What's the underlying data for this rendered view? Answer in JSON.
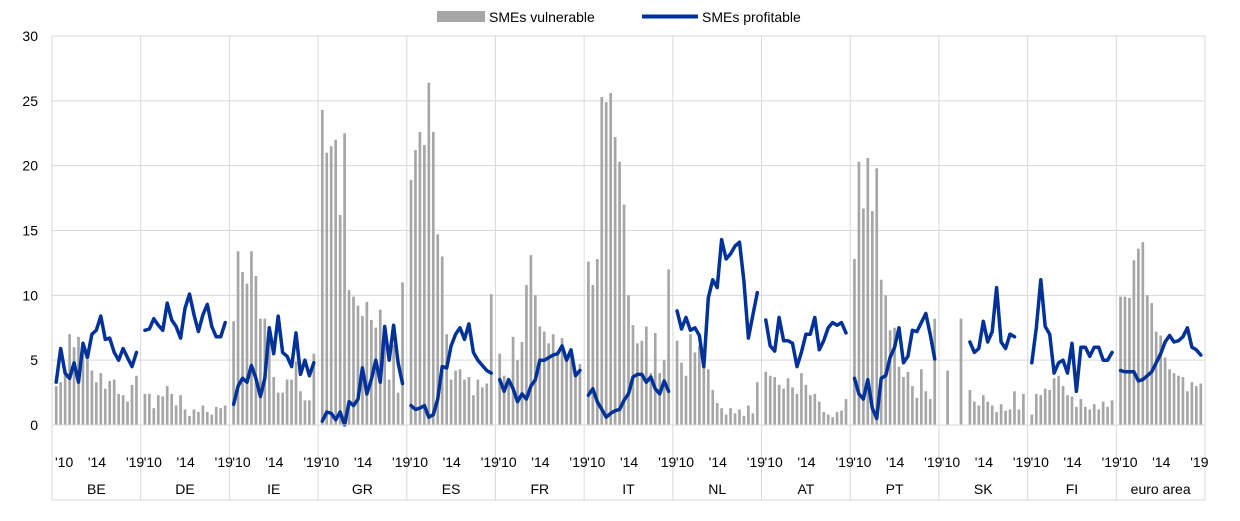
{
  "chart_data": {
    "type": "bar+line",
    "title": "",
    "legend": {
      "placement": "top-center",
      "items": [
        {
          "label": "SMEs vulnerable",
          "color": "#a6a6a6",
          "kind": "bar"
        },
        {
          "label": "SMEs profitable",
          "color": "#003299",
          "kind": "line"
        }
      ]
    },
    "ylim": [
      0,
      30
    ],
    "yticks": [
      "0",
      "5",
      "10",
      "15",
      "20",
      "25",
      "30"
    ],
    "grid": true,
    "year_tick_labels": [
      "'10",
      "'14",
      "'19"
    ],
    "series": [
      {
        "name": "SMEs vulnerable",
        "color": "#a6a6a6"
      },
      {
        "name": "SMEs profitable",
        "color": "#003299"
      }
    ],
    "groups": [
      {
        "name": "BE",
        "vulnerable": [
          3.0,
          3.3,
          4.0,
          7.0,
          6.0,
          6.8,
          6.2,
          5.0,
          4.2,
          3.3,
          4.0,
          2.8,
          3.4,
          3.5,
          2.4,
          2.3,
          1.8,
          3.1,
          3.8
        ],
        "profitable": [
          3.3,
          5.9,
          4.0,
          3.6,
          4.8,
          3.3,
          6.3,
          5.2,
          7.0,
          7.3,
          8.4,
          6.6,
          6.7,
          5.6,
          5.0,
          5.9,
          5.2,
          4.5,
          5.6
        ]
      },
      {
        "name": "DE",
        "vulnerable": [
          2.4,
          2.4,
          1.3,
          2.3,
          2.2,
          3.0,
          2.4,
          1.5,
          2.3,
          1.2,
          0.7,
          1.2,
          1.0,
          1.5,
          1.0,
          0.8,
          1.4,
          1.3,
          1.5
        ],
        "profitable": [
          7.3,
          7.4,
          8.2,
          7.7,
          7.3,
          9.4,
          8.1,
          7.6,
          6.7,
          9.0,
          10.1,
          8.5,
          7.2,
          8.5,
          9.3,
          7.6,
          6.8,
          6.8,
          7.9
        ]
      },
      {
        "name": "IE",
        "vulnerable": [
          8.0,
          13.4,
          11.8,
          10.9,
          13.4,
          11.5,
          8.2,
          8.2,
          7.3,
          3.7,
          2.5,
          2.5,
          3.5,
          3.5,
          4.9,
          2.6,
          1.9,
          1.9,
          5.5
        ],
        "profitable": [
          1.6,
          3.0,
          3.6,
          3.3,
          4.6,
          3.6,
          2.2,
          3.6,
          7.5,
          5.5,
          8.4,
          5.6,
          5.3,
          4.5,
          7.1,
          3.9,
          5.0,
          3.8,
          4.8
        ]
      },
      {
        "name": "GR",
        "vulnerable": [
          24.3,
          21.0,
          21.5,
          22.0,
          16.2,
          22.5,
          10.4,
          9.9,
          9.2,
          8.4,
          9.5,
          8.1,
          7.5,
          8.9,
          7.2,
          3.5,
          6.2,
          2.5,
          11.0
        ],
        "profitable": [
          0.3,
          1.0,
          0.9,
          0.4,
          1.0,
          0.0,
          1.8,
          1.5,
          2.0,
          4.4,
          2.4,
          3.5,
          5.0,
          3.3,
          7.6,
          5.0,
          7.7,
          4.8,
          3.2
        ]
      },
      {
        "name": "ES",
        "vulnerable": [
          18.9,
          21.2,
          22.6,
          21.6,
          26.4,
          22.6,
          14.7,
          13.0,
          7.0,
          3.5,
          4.2,
          4.3,
          3.5,
          3.7,
          2.3,
          3.5,
          2.9,
          3.2,
          10.1
        ],
        "profitable": [
          1.5,
          1.2,
          1.3,
          1.5,
          0.6,
          0.8,
          2.0,
          4.5,
          4.4,
          6.1,
          7.0,
          7.5,
          6.6,
          7.8,
          5.6,
          5.0,
          4.6,
          4.2,
          4.0
        ]
      },
      {
        "name": "FR",
        "vulnerable": [
          5.5,
          3.8,
          3.3,
          6.8,
          5.0,
          6.4,
          10.8,
          13.1,
          10.0,
          7.6,
          7.2,
          6.3,
          7.0,
          5.7,
          6.7,
          5.0,
          5.5,
          4.2,
          4.7
        ],
        "profitable": [
          3.5,
          2.6,
          3.5,
          2.8,
          1.8,
          2.4,
          2.0,
          3.0,
          3.5,
          5.0,
          5.0,
          5.2,
          5.4,
          5.5,
          6.1,
          5.0,
          5.8,
          3.8,
          4.2
        ]
      },
      {
        "name": "IT",
        "vulnerable": [
          12.6,
          10.8,
          12.8,
          25.3,
          24.9,
          25.6,
          22.2,
          20.3,
          17.0,
          10.0,
          7.7,
          6.3,
          6.5,
          7.6,
          4.0,
          7.1,
          4.0,
          5.0,
          12.0
        ],
        "profitable": [
          2.3,
          2.8,
          1.8,
          1.2,
          0.6,
          0.9,
          1.1,
          1.2,
          1.9,
          2.4,
          3.7,
          3.9,
          3.9,
          3.3,
          3.7,
          2.8,
          2.4,
          3.4,
          2.6
        ]
      },
      {
        "name": "NL",
        "vulnerable": [
          6.5,
          4.8,
          3.8,
          7.0,
          5.6,
          6.1,
          4.8,
          4.3,
          2.7,
          1.7,
          1.3,
          0.8,
          1.3,
          0.9,
          1.2,
          0.7,
          1.5,
          0.9,
          3.3
        ],
        "profitable": [
          8.8,
          7.4,
          8.3,
          7.3,
          7.5,
          6.9,
          4.5,
          9.8,
          11.2,
          10.6,
          14.3,
          12.8,
          13.2,
          13.8,
          14.1,
          11.1,
          6.7,
          8.5,
          10.2
        ]
      },
      {
        "name": "AT",
        "vulnerable": [
          4.1,
          3.8,
          3.7,
          3.1,
          2.8,
          3.6,
          2.9,
          2.4,
          4.0,
          3.1,
          2.3,
          2.4,
          1.8,
          1.0,
          0.8,
          0.6,
          1.0,
          1.1,
          2.0
        ],
        "profitable": [
          8.1,
          6.1,
          5.7,
          8.3,
          6.5,
          6.5,
          6.3,
          4.5,
          5.6,
          7.0,
          7.0,
          8.3,
          5.8,
          6.5,
          7.5,
          7.9,
          7.7,
          7.9,
          7.1
        ]
      },
      {
        "name": "PT",
        "vulnerable": [
          12.8,
          20.3,
          16.7,
          20.6,
          16.5,
          19.8,
          11.2,
          10.0,
          7.3,
          7.5,
          4.5,
          3.7,
          4.1,
          3.0,
          2.1,
          4.3,
          2.6,
          2.0,
          8.2
        ],
        "profitable": [
          3.6,
          2.4,
          2.0,
          3.5,
          1.3,
          0.5,
          3.6,
          3.8,
          5.2,
          6.0,
          7.5,
          4.8,
          5.3,
          7.3,
          7.2,
          7.9,
          8.6,
          7.0,
          5.1
        ]
      },
      {
        "name": "SK",
        "vulnerable": [
          0.0,
          4.2,
          0.0,
          0.0,
          8.2,
          0.0,
          2.7,
          1.8,
          1.5,
          2.3,
          1.8,
          1.5,
          1.0,
          1.6,
          1.1,
          1.2,
          2.6,
          1.2,
          2.4
        ],
        "profitable": [
          null,
          null,
          null,
          null,
          null,
          null,
          6.4,
          5.6,
          5.9,
          8.0,
          6.4,
          7.2,
          10.6,
          6.4,
          5.9,
          7.0,
          6.8,
          null,
          null
        ]
      },
      {
        "name": "FI",
        "vulnerable": [
          0.8,
          2.4,
          2.3,
          2.8,
          2.7,
          3.6,
          3.8,
          3.0,
          2.3,
          2.2,
          1.4,
          2.0,
          1.4,
          1.2,
          1.6,
          1.2,
          1.8,
          1.4,
          1.9
        ],
        "profitable": [
          4.8,
          7.5,
          11.2,
          7.6,
          7.0,
          4.0,
          4.8,
          5.0,
          4.0,
          6.3,
          2.6,
          6.0,
          6.0,
          5.3,
          6.0,
          6.0,
          5.0,
          5.0,
          5.6
        ]
      },
      {
        "name": "euro area",
        "vulnerable": [
          9.9,
          9.9,
          9.8,
          12.7,
          13.6,
          14.1,
          10.0,
          9.4,
          7.2,
          6.9,
          5.2,
          4.3,
          4.0,
          3.8,
          3.7,
          2.6,
          3.3,
          3.0,
          3.2
        ],
        "profitable": [
          4.2,
          4.1,
          4.1,
          4.1,
          3.4,
          3.5,
          3.8,
          4.1,
          4.8,
          5.5,
          6.4,
          6.9,
          6.4,
          6.5,
          6.8,
          7.5,
          6.0,
          5.8,
          5.4
        ]
      }
    ]
  }
}
